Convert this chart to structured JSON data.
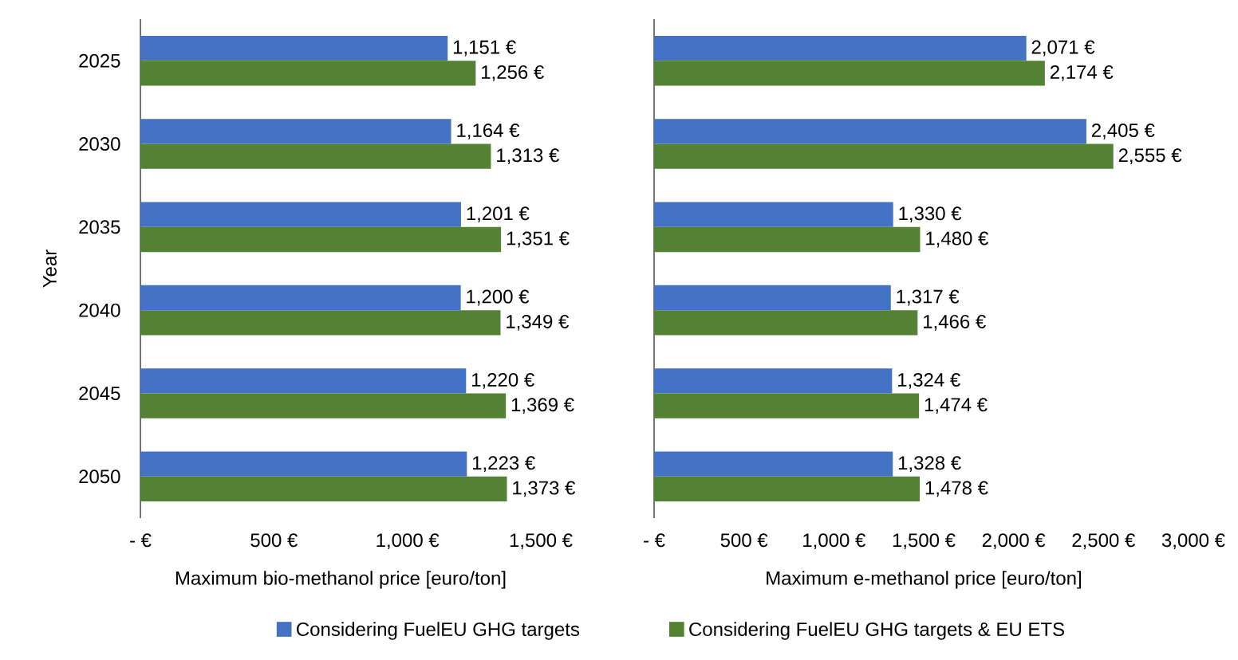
{
  "chart_data": [
    {
      "type": "bar",
      "orientation": "horizontal",
      "ylabel": "Year",
      "xlabel": "Maximum bio-methanol price [euro/ton]",
      "categories": [
        "2025",
        "2030",
        "2035",
        "2040",
        "2045",
        "2050"
      ],
      "xlim": [
        0,
        1500
      ],
      "xticks": [
        {
          "value": 0,
          "label": "-   €"
        },
        {
          "value": 500,
          "label": "500 €"
        },
        {
          "value": 1000,
          "label": "1,000 €"
        },
        {
          "value": 1500,
          "label": "1,500 €"
        }
      ],
      "legend": "bottom",
      "series": [
        {
          "name": "Considering FuelEU GHG targets",
          "color": "#4472c4",
          "values": [
            1151,
            1164,
            1201,
            1200,
            1220,
            1223
          ],
          "value_labels": [
            "1,151 €",
            "1,164 €",
            "1,201 €",
            "1,200 €",
            "1,220 €",
            "1,223 €"
          ]
        },
        {
          "name": "Considering FuelEU GHG targets & EU ETS",
          "color": "#548235",
          "values": [
            1256,
            1313,
            1351,
            1349,
            1369,
            1373
          ],
          "value_labels": [
            "1,256 €",
            "1,313 €",
            "1,351 €",
            "1,349 €",
            "1,369 €",
            "1,373 €"
          ]
        }
      ]
    },
    {
      "type": "bar",
      "orientation": "horizontal",
      "xlabel": "Maximum e-methanol price [euro/ton]",
      "categories": [
        "2025",
        "2030",
        "2035",
        "2040",
        "2045",
        "2050"
      ],
      "xlim": [
        0,
        3000
      ],
      "xticks": [
        {
          "value": 0,
          "label": "-   €"
        },
        {
          "value": 500,
          "label": "500 €"
        },
        {
          "value": 1000,
          "label": "1,000 €"
        },
        {
          "value": 1500,
          "label": "1,500 €"
        },
        {
          "value": 2000,
          "label": "2,000 €"
        },
        {
          "value": 2500,
          "label": "2,500 €"
        },
        {
          "value": 3000,
          "label": "3,000 €"
        }
      ],
      "tick_labels": "x",
      "series": [
        {
          "color": "#4472c4",
          "values": [
            2071,
            2405,
            1330,
            1317,
            1324,
            1328
          ],
          "value_labels": [
            "2,071 €",
            "2,405 €",
            "1,330 €",
            "1,317 €",
            "1,324 €",
            "1,328 €"
          ]
        },
        {
          "color": "#548235",
          "values": [
            2174,
            2555,
            1480,
            1466,
            1474,
            1478
          ],
          "value_labels": [
            "2,174 €",
            "2,555 €",
            "1,480 €",
            "1,466 €",
            "1,474 €",
            "1,478 €"
          ]
        }
      ]
    }
  ]
}
